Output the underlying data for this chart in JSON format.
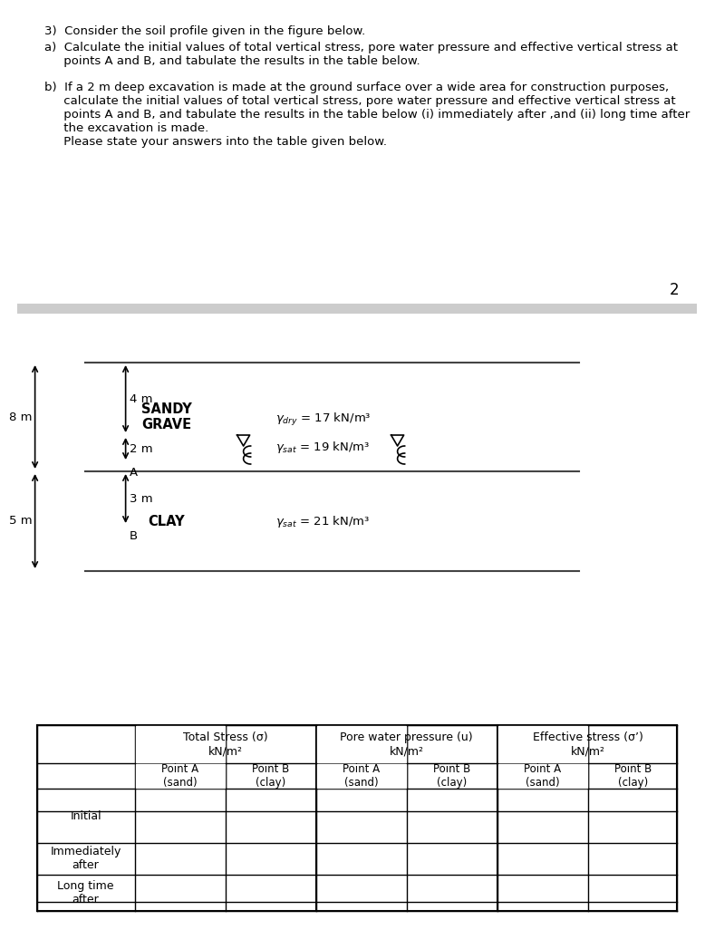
{
  "title_text": "3)  Consider the soil profile given in the figure below.",
  "sub_a": "a)  Calculate the initial values of total vertical stress, pore water pressure and effective vertical stress at\n     points A and B, and tabulate the results in the table below.",
  "sub_b": "b)  If a 2 m deep excavation is made at the ground surface over a wide area for construction purposes,\n     calculate the initial values of total vertical stress, pore water pressure and effective vertical stress at\n     points A and B, and tabulate the results in the table below (i) immediately after ,and (ii) long time after\n     the excavation is made.\n     Please state your answers into the table given below.",
  "page_number": "2",
  "layer1_label": "SANDY\nGRAVE",
  "layer2_label": "CLAY",
  "dim_8m": "8 m",
  "dim_4m": "4 m",
  "dim_2m": "2 m",
  "dim_5m": "5 m",
  "dim_3m": "3 m",
  "point_A": "A",
  "point_B": "B",
  "gamma_dry": "γₐᵣʸ = 17 kN/m³",
  "gamma_sat1": "γₛₐₜ = 19 kN/m³",
  "gamma_sat2": "γₛₐₜ = 21 kN/m³",
  "table_col1_header": "Total Stress (σ)\nkN/m²",
  "table_col2_header": "Pore water pressure (u)\nkN/m²",
  "table_col3_header": "Effective stress (σ’)\nkN/m²",
  "table_sub_A_sand": "Point A\n(sand)",
  "table_sub_B_clay": "Point B\n(clay)",
  "row_initial": "Initial",
  "row_imm": "Immediately\nafter",
  "row_long": "Long time\nafter",
  "bg_color": "#ffffff",
  "text_color": "#000000",
  "line_color": "#555555",
  "table_line_color": "#000000"
}
